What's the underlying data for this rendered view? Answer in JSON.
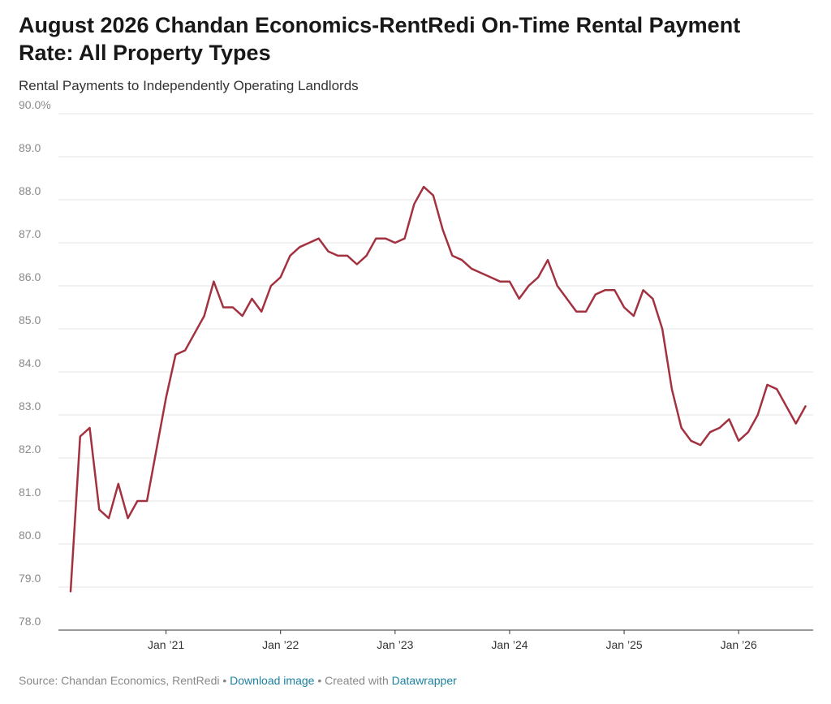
{
  "title": "August 2026 Chandan Economics-RentRedi On-Time Rental Payment Rate: All Property Types",
  "subtitle": "Rental Payments to Independently Operating Landlords",
  "footer": {
    "source": "Source: Chandan Economics, RentRedi",
    "separator": "•",
    "download_link": "Download image",
    "created_with": "Created with",
    "datawrapper_link": "Datawrapper"
  },
  "colors": {
    "line": "#a33240",
    "grid": "#e6e6e6",
    "tick_text": "#8a8a8a",
    "link": "#1d81a2"
  },
  "chart_data": {
    "type": "line",
    "title": "August 2026 Chandan Economics-RentRedi On-Time Rental Payment Rate: All Property Types",
    "subtitle": "Rental Payments to Independently Operating Landlords",
    "xlabel": "",
    "ylabel": "",
    "ylim": [
      78.0,
      90.0
    ],
    "grid": true,
    "y_ticks": [
      {
        "value": 90,
        "label": "90.0%"
      },
      {
        "value": 89,
        "label": "89.0"
      },
      {
        "value": 88,
        "label": "88.0"
      },
      {
        "value": 87,
        "label": "87.0"
      },
      {
        "value": 86,
        "label": "86.0"
      },
      {
        "value": 85,
        "label": "85.0"
      },
      {
        "value": 84,
        "label": "84.0"
      },
      {
        "value": 83,
        "label": "83.0"
      },
      {
        "value": 82,
        "label": "82.0"
      },
      {
        "value": 81,
        "label": "81.0"
      },
      {
        "value": 80,
        "label": "80.0"
      },
      {
        "value": 79,
        "label": "79.0"
      },
      {
        "value": 78,
        "label": "78.0"
      }
    ],
    "x_ticks": [
      {
        "date": "2021-01",
        "label": "Jan ’21"
      },
      {
        "date": "2022-01",
        "label": "Jan ’22"
      },
      {
        "date": "2023-01",
        "label": "Jan ’23"
      },
      {
        "date": "2024-01",
        "label": "Jan ’24"
      },
      {
        "date": "2025-01",
        "label": "Jan ’25"
      },
      {
        "date": "2026-01",
        "label": "Jan ’26"
      }
    ],
    "series": [
      {
        "x": [
          "2020-03",
          "2020-04",
          "2020-05",
          "2020-06",
          "2020-07",
          "2020-08",
          "2020-09",
          "2020-10",
          "2020-11",
          "2020-12",
          "2021-01",
          "2021-02",
          "2021-03",
          "2021-04",
          "2021-05",
          "2021-06",
          "2021-07",
          "2021-08",
          "2021-09",
          "2021-10",
          "2021-11",
          "2021-12",
          "2022-01",
          "2022-02",
          "2022-03",
          "2022-04",
          "2022-05",
          "2022-06",
          "2022-07",
          "2022-08",
          "2022-09",
          "2022-10",
          "2022-11",
          "2022-12",
          "2023-01",
          "2023-02",
          "2023-03",
          "2023-04",
          "2023-05",
          "2023-06",
          "2023-07",
          "2023-08",
          "2023-09",
          "2023-10",
          "2023-11",
          "2023-12",
          "2024-01",
          "2024-02",
          "2024-03",
          "2024-04",
          "2024-05",
          "2024-06",
          "2024-07",
          "2024-08",
          "2024-09",
          "2024-10",
          "2024-11",
          "2024-12",
          "2025-01",
          "2025-02",
          "2025-03",
          "2025-04",
          "2025-05",
          "2025-06",
          "2025-07",
          "2025-08",
          "2025-09",
          "2025-10",
          "2025-11",
          "2025-12",
          "2026-01",
          "2026-02",
          "2026-03",
          "2026-04",
          "2026-05",
          "2026-06",
          "2026-07",
          "2026-08"
        ],
        "values": [
          78.9,
          82.5,
          82.7,
          80.8,
          80.6,
          81.4,
          80.6,
          81.0,
          81.0,
          82.2,
          83.4,
          84.4,
          84.5,
          84.9,
          85.3,
          86.1,
          85.5,
          85.5,
          85.3,
          85.7,
          85.4,
          86.0,
          86.2,
          86.7,
          86.9,
          87.0,
          87.1,
          86.8,
          86.7,
          86.7,
          86.5,
          86.7,
          87.1,
          87.1,
          87.0,
          87.1,
          87.9,
          88.3,
          88.1,
          87.3,
          86.7,
          86.6,
          86.4,
          86.3,
          86.2,
          86.1,
          86.1,
          85.7,
          86.0,
          86.2,
          86.6,
          86.0,
          85.7,
          85.4,
          85.4,
          85.8,
          85.9,
          85.9,
          85.5,
          85.3,
          85.9,
          85.7,
          85.0,
          83.6,
          82.7,
          82.4,
          82.3,
          82.6,
          82.7,
          82.9,
          82.4,
          82.6,
          83.0,
          83.7,
          83.6,
          83.2,
          82.8,
          83.2
        ]
      }
    ]
  }
}
